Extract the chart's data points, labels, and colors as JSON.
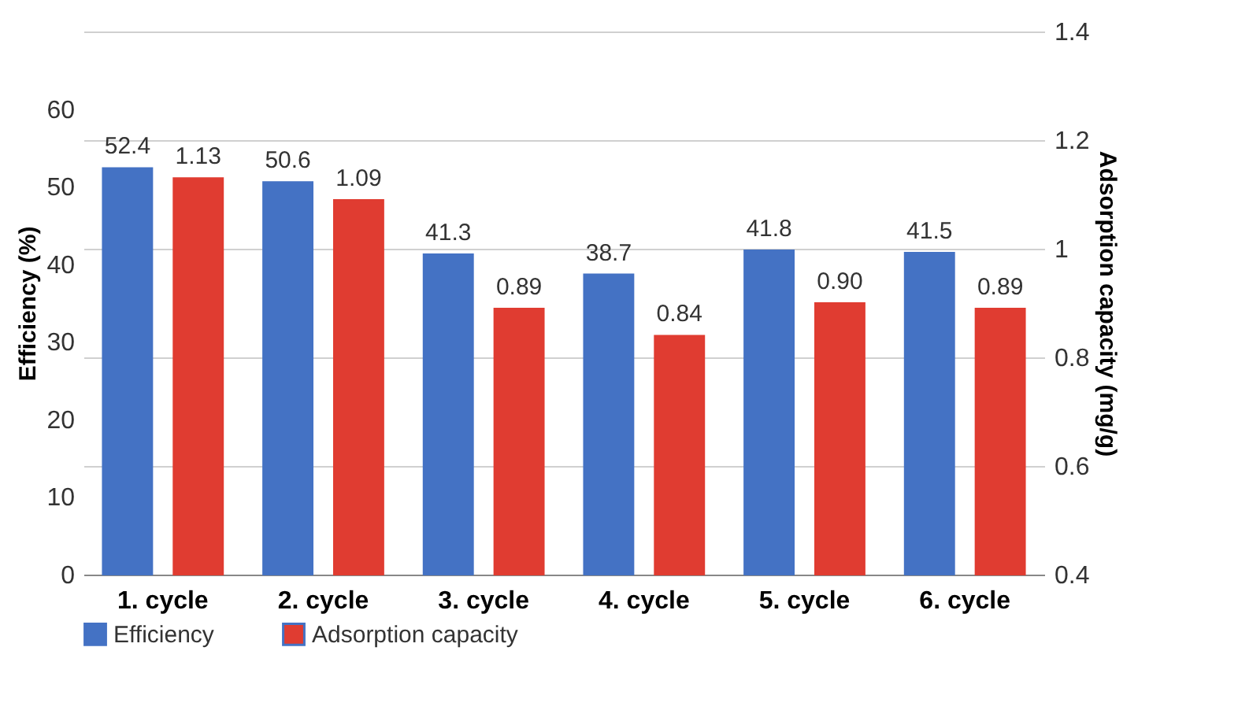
{
  "chart_data": {
    "type": "bar",
    "categories": [
      "1. cycle",
      "2. cycle",
      "3. cycle",
      "4. cycle",
      "5. cycle",
      "6. cycle"
    ],
    "ylabel": "Efficiency (%)",
    "y2label": "Adsorption capacity (mg/g)",
    "ylim": [
      0,
      70
    ],
    "yticks": [
      0,
      10,
      20,
      30,
      40,
      50,
      60
    ],
    "y2lim": [
      0.4,
      1.4
    ],
    "y2ticks": [
      0.4,
      0.6,
      0.8,
      {
        "value": 1,
        "label": "1"
      },
      1.2,
      1.4
    ],
    "grid": true,
    "legend": "bottom",
    "series": [
      {
        "name": "Efficiency",
        "color": "#4472c4",
        "values": [
          52.4,
          50.6,
          41.3,
          38.7,
          41.8,
          41.5
        ],
        "value_labels": [
          "52.4",
          "50.6",
          "41.3",
          "38.7",
          "41.8",
          "41.5"
        ]
      },
      {
        "name": "Adsorption capacity",
        "color": "#e03c31",
        "axis": "y2",
        "values": [
          1.13,
          1.09,
          0.89,
          0.84,
          0.9,
          0.89
        ],
        "value_labels": [
          "1.13",
          "1.09",
          "0.89",
          "0.84",
          "0.90",
          "0.89"
        ]
      }
    ]
  }
}
